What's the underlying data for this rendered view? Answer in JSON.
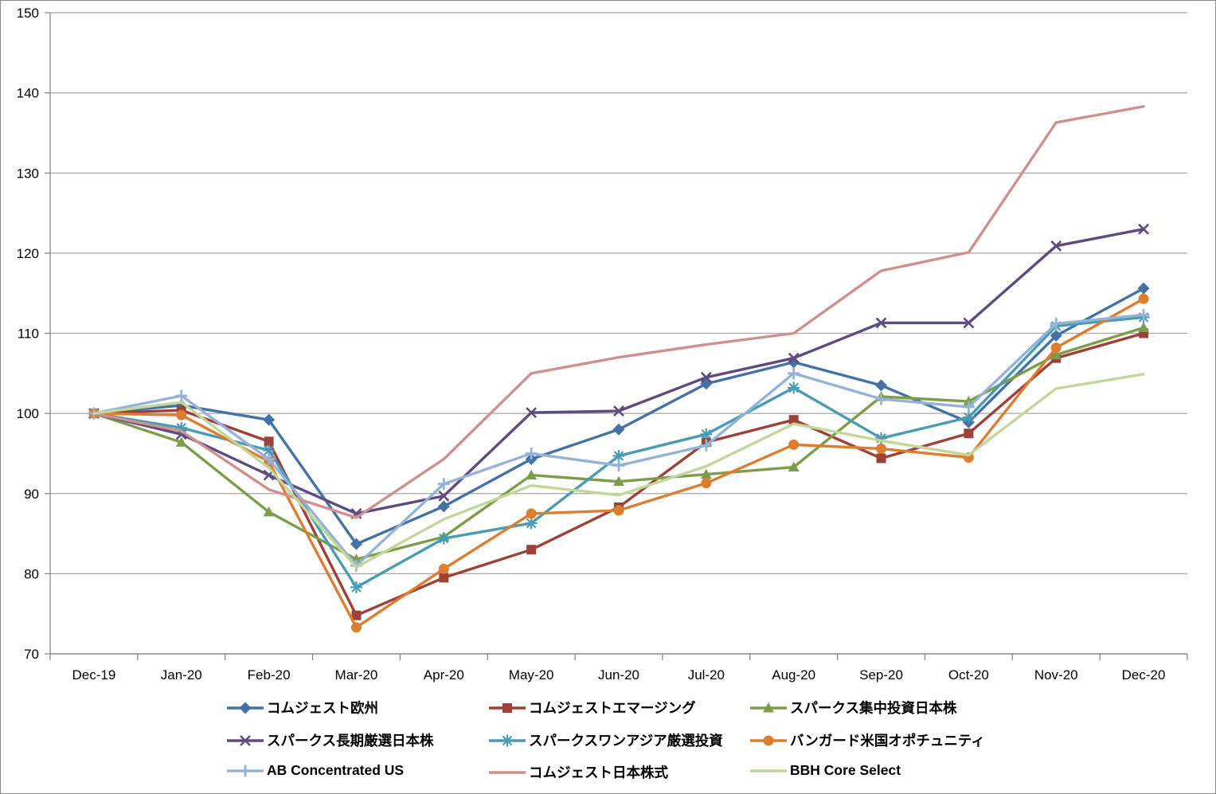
{
  "chart_data": {
    "type": "line",
    "title": "",
    "xlabel": "",
    "ylabel": "",
    "grid": true,
    "legend_position": "bottom",
    "categories": [
      "Dec-19",
      "Jan-20",
      "Feb-20",
      "Mar-20",
      "Apr-20",
      "May-20",
      "Jun-20",
      "Jul-20",
      "Aug-20",
      "Sep-20",
      "Oct-20",
      "Nov-20",
      "Dec-20"
    ],
    "y_axis": {
      "min": 70,
      "max": 150,
      "step": 10,
      "tick_labels": [
        "70",
        "80",
        "90",
        "100",
        "110",
        "120",
        "130",
        "140",
        "150"
      ]
    },
    "series": [
      {
        "name": "コムジェスト欧州",
        "color": "#4472A4",
        "marker": "diamond",
        "values": [
          100,
          101.0,
          99.2,
          83.7,
          88.4,
          94.3,
          98.0,
          103.7,
          106.4,
          103.5,
          98.9,
          109.7,
          115.6
        ]
      },
      {
        "name": "コムジェストエマージング",
        "color": "#9E4139",
        "marker": "square",
        "values": [
          100,
          100.4,
          96.5,
          74.8,
          79.5,
          83.0,
          88.3,
          96.4,
          99.2,
          94.4,
          97.5,
          106.9,
          110.0
        ]
      },
      {
        "name": "スパークス集中投資日本株",
        "color": "#7E9D4A",
        "marker": "triangle",
        "values": [
          100,
          96.4,
          87.7,
          81.8,
          84.6,
          92.3,
          91.5,
          92.4,
          93.3,
          102.1,
          101.5,
          107.3,
          110.7
        ]
      },
      {
        "name": "スパークス長期厳選日本株",
        "color": "#5E4B7F",
        "marker": "x",
        "values": [
          100,
          97.4,
          92.3,
          87.5,
          89.7,
          100.1,
          100.3,
          104.5,
          106.9,
          111.3,
          111.3,
          120.9,
          123.0
        ]
      },
      {
        "name": "スパークスワンアジア厳選投資",
        "color": "#4A9BB4",
        "marker": "asterisk",
        "values": [
          100,
          98.2,
          95.4,
          78.3,
          84.4,
          86.3,
          94.7,
          97.4,
          103.2,
          96.9,
          99.5,
          110.9,
          112.0
        ]
      },
      {
        "name": "バンガード米国オポチュニティ",
        "color": "#DC7E2F",
        "marker": "circle",
        "values": [
          100,
          99.8,
          94.0,
          73.3,
          80.6,
          87.5,
          87.9,
          91.3,
          96.1,
          95.6,
          94.5,
          108.2,
          114.3
        ]
      },
      {
        "name": "AB Concentrated US",
        "color": "#95B3D7",
        "marker": "plus",
        "values": [
          100,
          102.2,
          94.3,
          81.0,
          91.2,
          95.0,
          93.5,
          96.0,
          105.0,
          101.8,
          100.8,
          111.2,
          112.3
        ]
      },
      {
        "name": "コムジェスト日本株式",
        "color": "#CF918F",
        "marker": "none",
        "values": [
          100,
          97.8,
          90.5,
          87.0,
          94.3,
          105.0,
          107.0,
          108.6,
          110.0,
          117.8,
          120.1,
          136.3,
          138.3
        ]
      },
      {
        "name": "BBH Core Select",
        "color": "#C3D69B",
        "marker": "none",
        "values": [
          100,
          101.4,
          93.2,
          80.8,
          86.8,
          91.0,
          89.8,
          93.4,
          98.7,
          96.6,
          94.8,
          103.1,
          104.9
        ]
      }
    ]
  },
  "legend": {
    "rows": [
      [
        0,
        1,
        2
      ],
      [
        3,
        4,
        5
      ],
      [
        6,
        7,
        8
      ]
    ],
    "column_lefts": [
      283,
      612,
      940
    ],
    "row_tops": [
      875,
      916,
      956
    ]
  },
  "axis_colors": {
    "gridline": "#A6A6A6",
    "axis": "#808080",
    "tick_label": "#000000"
  }
}
